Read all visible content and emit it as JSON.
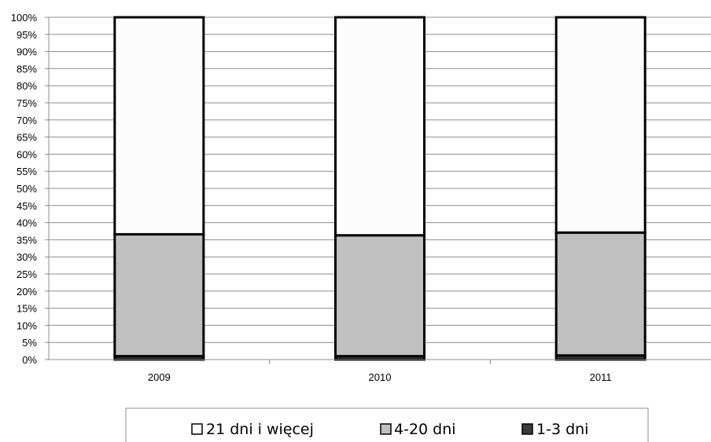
{
  "chart_data": {
    "type": "bar",
    "stacked": true,
    "normalized": true,
    "categories": [
      "2009",
      "2010",
      "2011"
    ],
    "series": [
      {
        "name": "1-3 dni",
        "values": [
          1.0,
          1.0,
          1.2
        ],
        "color": "#3a3a3a"
      },
      {
        "name": "4-20 dni",
        "values": [
          35.6,
          35.3,
          35.9
        ],
        "color": "#c0c0c0"
      },
      {
        "name": "21 dni i więcej",
        "values": [
          63.4,
          63.7,
          62.9
        ],
        "color": "#fcfcfc"
      }
    ],
    "y_ticks": [
      "0%",
      "5%",
      "10%",
      "15%",
      "20%",
      "25%",
      "30%",
      "35%",
      "40%",
      "45%",
      "50%",
      "55%",
      "60%",
      "65%",
      "70%",
      "75%",
      "80%",
      "85%",
      "90%",
      "95%",
      "100%"
    ],
    "ylim": [
      0,
      100
    ],
    "grid": true,
    "legend": {
      "position": "bottom",
      "entries": [
        "21 dni i więcej",
        "4-20 dni",
        "1-3 dni"
      ]
    }
  }
}
